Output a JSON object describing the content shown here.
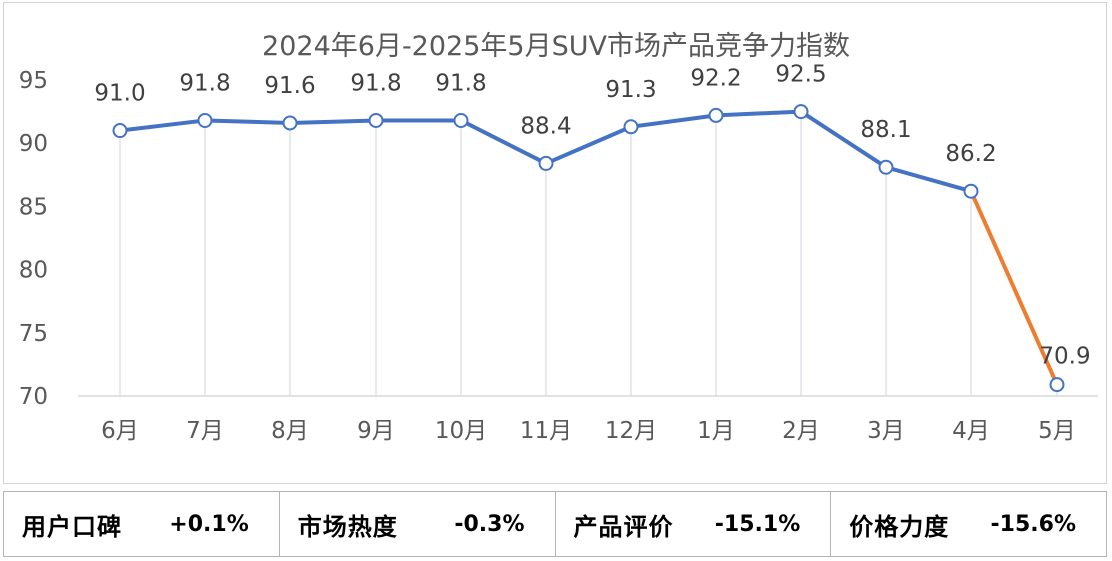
{
  "chart_data": {
    "type": "line",
    "title": "2024年6月-2025年5月SUV市场产品竞争力指数",
    "categories": [
      "6月",
      "7月",
      "8月",
      "9月",
      "10月",
      "11月",
      "12月",
      "1月",
      "2月",
      "3月",
      "4月",
      "5月"
    ],
    "values": [
      91.0,
      91.8,
      91.6,
      91.8,
      91.8,
      88.4,
      91.3,
      92.2,
      92.5,
      88.1,
      86.2,
      70.9
    ],
    "value_labels": [
      "91.0",
      "91.8",
      "91.6",
      "91.8",
      "91.8",
      "88.4",
      "91.3",
      "92.2",
      "92.5",
      "88.1",
      "86.2",
      "70.9"
    ],
    "yticks": [
      "70",
      "75",
      "80",
      "85",
      "90",
      "95"
    ],
    "ylim": [
      70,
      95
    ],
    "grid": false,
    "legend": "none",
    "colors": {
      "main_line": "#4472c4",
      "last_segment": "#ed7d31",
      "drop_line": "#d6dce5",
      "marker_fill": "#ffffff"
    }
  },
  "metrics": [
    {
      "label": "用户口碑",
      "value": "+0.1%"
    },
    {
      "label": "市场热度",
      "value": "-0.3%"
    },
    {
      "label": "产品评价",
      "value": "-15.1%"
    },
    {
      "label": "价格力度",
      "value": "-15.6%"
    }
  ]
}
